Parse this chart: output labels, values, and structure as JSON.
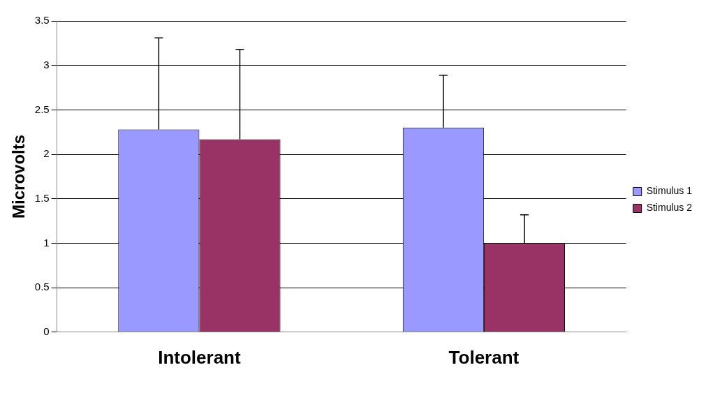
{
  "chart_data": {
    "type": "bar",
    "ylabel": "Microvolts",
    "categories": [
      "Intolerant",
      "Tolerant"
    ],
    "series": [
      {
        "name": "Stimulus 1",
        "color": "#9999ff",
        "values": [
          2.28,
          2.3
        ],
        "errors": [
          [
            2.28,
            3.31
          ],
          [
            2.3,
            2.89
          ]
        ]
      },
      {
        "name": "Stimulus 2",
        "color": "#993366",
        "values": [
          2.17,
          1.0
        ],
        "errors": [
          [
            2.17,
            3.18
          ],
          [
            1.0,
            1.32
          ]
        ]
      }
    ],
    "ylim": [
      0,
      3.5
    ],
    "yticks": [
      0,
      0.5,
      1,
      1.5,
      2,
      2.5,
      3,
      3.5
    ],
    "grid": "y",
    "legend": "right"
  }
}
